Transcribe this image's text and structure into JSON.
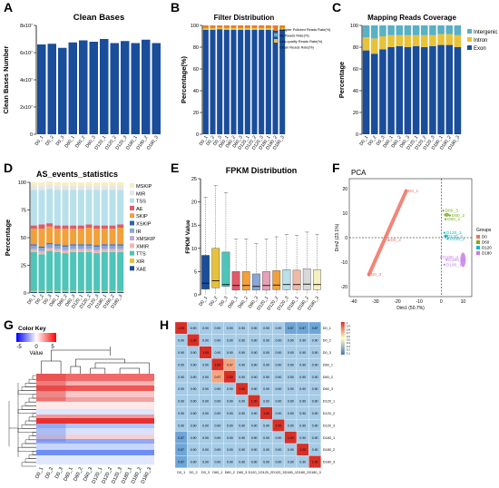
{
  "figure": {
    "letters": [
      "A",
      "B",
      "C",
      "D",
      "E",
      "F",
      "G",
      "H"
    ]
  },
  "sample_names": [
    "D0_1",
    "D0_2",
    "D0_3",
    "D60_1",
    "D60_2",
    "D60_3",
    "D120_1",
    "D120_2",
    "D120_3",
    "D180_1",
    "D180_2",
    "D180_3"
  ],
  "chart_data": [
    {
      "panel": "A",
      "type": "bar",
      "title": "Clean Bases",
      "xlabel": "",
      "ylabel": "Clean Bases Number",
      "ylim": [
        0,
        80000000
      ],
      "yticks": [
        "0",
        "2x10⁷",
        "4x10⁷",
        "6x10⁷",
        "8x10⁷"
      ],
      "categories": [
        "D0_1",
        "D0_2",
        "D0_3",
        "D60_1",
        "D60_2",
        "D60_3",
        "D120_1",
        "D120_2",
        "D120_3",
        "D180_1",
        "D180_2",
        "D180_3"
      ],
      "values": [
        66000000,
        66500000,
        63500000,
        67500000,
        69000000,
        68000000,
        70000000,
        67000000,
        68500000,
        67000000,
        69500000,
        67000000
      ],
      "color": "#1a4d9a"
    },
    {
      "panel": "B",
      "type": "bar",
      "title": "Filter Distribution",
      "xlabel": "",
      "ylabel": "Percentage(%)",
      "ylim": [
        0,
        100
      ],
      "yticks": [
        "0",
        "20",
        "40",
        "60",
        "80",
        "100"
      ],
      "categories": [
        "D0_1",
        "D0_2",
        "D0_3",
        "D60_1",
        "D60_2",
        "D60_3",
        "D120_1",
        "D120_2",
        "D120_3",
        "D180_1",
        "D180_2",
        "D180_3"
      ],
      "legend_placement": "right",
      "series": [
        {
          "name": "Clean Reads Rate(%)",
          "color": "#1a4d9a",
          "values": [
            96,
            96,
            96.5,
            96,
            96,
            96,
            96,
            96,
            96,
            96,
            96,
            96
          ]
        },
        {
          "name": "Low-quality Reads Rate(%)",
          "color": "#e8c23a",
          "values": [
            1.5,
            1.5,
            1.3,
            1.5,
            1.5,
            1.5,
            1.5,
            1.5,
            1.5,
            1.5,
            1.5,
            1.5
          ]
        },
        {
          "name": "No Reads Rate(%)",
          "color": "#5ab0c4",
          "values": [
            0.5,
            0.5,
            0.5,
            0.5,
            0.5,
            0.5,
            0.5,
            0.5,
            0.5,
            0.5,
            0.5,
            0.5
          ]
        },
        {
          "name": "Adapter Polluted Reads Rate(%)",
          "color": "#e87b2a",
          "values": [
            2,
            2,
            1.7,
            2,
            2,
            2,
            2,
            2,
            2,
            2,
            2,
            2
          ]
        }
      ]
    },
    {
      "panel": "C",
      "type": "bar",
      "title": "Mapping Reads Coverage",
      "xlabel": "",
      "ylabel": "Percentage",
      "ylim": [
        0,
        100
      ],
      "yticks": [
        "0",
        "20",
        "40",
        "60",
        "80",
        "100"
      ],
      "categories": [
        "D0_1",
        "D0_2",
        "D0_3",
        "D60_1",
        "D60_2",
        "D60_3",
        "D120_1",
        "D120_2",
        "D120_3",
        "D180_1",
        "D180_2",
        "D180_3"
      ],
      "legend_placement": "right",
      "series": [
        {
          "name": "Exon",
          "color": "#1a4d9a",
          "values": [
            77,
            74,
            78,
            80,
            81,
            80,
            81,
            80,
            81,
            82,
            82,
            80
          ]
        },
        {
          "name": "Intron",
          "color": "#e8c23a",
          "values": [
            12,
            14,
            12,
            11,
            10,
            11,
            10,
            11,
            10,
            10,
            10,
            11
          ]
        },
        {
          "name": "Intergenic",
          "color": "#5ab0c4",
          "values": [
            11,
            12,
            10,
            9,
            9,
            9,
            9,
            9,
            9,
            8,
            8,
            9
          ]
        }
      ]
    },
    {
      "panel": "D",
      "type": "bar",
      "title": "AS_events_statistics",
      "xlabel": "",
      "ylabel": "Percentage",
      "ylim": [
        0,
        100
      ],
      "yticks": [
        "0",
        "25",
        "50",
        "75",
        "100"
      ],
      "categories": [
        "D0_1",
        "D0_2",
        "D0_3",
        "D60_1",
        "D60_2",
        "D60_3",
        "D120_1",
        "D120_2",
        "D120_3",
        "D180_1",
        "D180_2",
        "D180_3"
      ],
      "legend_placement": "right",
      "series": [
        {
          "name": "XAE",
          "color": "#1a4d9a",
          "values": [
            1,
            1,
            1,
            1,
            1,
            1,
            1,
            1,
            1,
            1,
            1,
            1
          ]
        },
        {
          "name": "XIR",
          "color": "#e8c23a",
          "values": [
            1,
            1,
            1,
            1,
            1,
            1,
            1,
            1,
            1,
            1,
            1,
            1
          ]
        },
        {
          "name": "TTS",
          "color": "#4fc4b8",
          "values": [
            35,
            33,
            36,
            35,
            34,
            35,
            35,
            35,
            34,
            35,
            35,
            35
          ]
        },
        {
          "name": "XMIR",
          "color": "#f0b9a6",
          "values": [
            2,
            2,
            2,
            2,
            2,
            2,
            2,
            2,
            2,
            2,
            2,
            2
          ]
        },
        {
          "name": "XMSKIP",
          "color": "#c0a8d8",
          "values": [
            1,
            1,
            1,
            1,
            1,
            1,
            1,
            1,
            1,
            1,
            1,
            1
          ]
        },
        {
          "name": "IR",
          "color": "#8aa7d6",
          "values": [
            3,
            3,
            3,
            3,
            3,
            3,
            3,
            3,
            3,
            3,
            3,
            3
          ]
        },
        {
          "name": "XSKIP",
          "color": "#2f63b0",
          "values": [
            1,
            1,
            1,
            1,
            1,
            1,
            1,
            1,
            1,
            1,
            1,
            1
          ]
        },
        {
          "name": "SKIP",
          "color": "#f2a03a",
          "values": [
            14,
            16,
            15,
            14,
            15,
            14,
            14,
            15,
            15,
            14,
            14,
            15
          ]
        },
        {
          "name": "AE",
          "color": "#e05a6a",
          "values": [
            3,
            4,
            3,
            3,
            3,
            3,
            3,
            3,
            3,
            3,
            3,
            3
          ]
        },
        {
          "name": "TSS",
          "color": "#b8e0ea",
          "values": [
            32,
            31,
            31,
            32,
            32,
            32,
            32,
            31,
            32,
            32,
            32,
            31
          ]
        },
        {
          "name": "MIR",
          "color": "#e6e6e6",
          "values": [
            4,
            4,
            4,
            4,
            4,
            4,
            4,
            4,
            4,
            4,
            4,
            4
          ]
        },
        {
          "name": "MSKIP",
          "color": "#f6efc0",
          "values": [
            3,
            3,
            3,
            3,
            3,
            3,
            3,
            3,
            3,
            3,
            3,
            3
          ]
        }
      ]
    },
    {
      "panel": "E",
      "type": "box",
      "title": "FPKM Distribution",
      "xlabel": "",
      "ylabel": "FPKM Value",
      "ylim": [
        0,
        25
      ],
      "yticks": [
        "0",
        "5",
        "10",
        "15",
        "20",
        "25"
      ],
      "categories": [
        "D0_1",
        "D0_2",
        "D0_3",
        "D60_1",
        "D60_2",
        "D60_3",
        "D120_1",
        "D120_2",
        "D120_3",
        "D180_1",
        "D180_2",
        "D180_3"
      ],
      "colors": [
        "#1a4d9a",
        "#e8c23a",
        "#4fc4b8",
        "#e05a6a",
        "#f2a03a",
        "#8aa7d6",
        "#e6a0b8",
        "#f2a03a",
        "#b8e0ea",
        "#f0b9a6",
        "#d8d8d8",
        "#f6efc0"
      ],
      "boxes": [
        {
          "min": 0.1,
          "q1": 1.2,
          "median": 2.5,
          "q3": 8.5,
          "max": 21
        },
        {
          "min": 0.1,
          "q1": 1.5,
          "median": 3,
          "q3": 10,
          "max": 23.5
        },
        {
          "min": 0.1,
          "q1": 1.8,
          "median": 2.2,
          "q3": 9.2,
          "max": 22
        },
        {
          "min": 0.1,
          "q1": 1.0,
          "median": 2.0,
          "q3": 5,
          "max": 12
        },
        {
          "min": 0.1,
          "q1": 1.0,
          "median": 2.0,
          "q3": 5,
          "max": 12
        },
        {
          "min": 0.1,
          "q1": 1.0,
          "median": 1.8,
          "q3": 4.5,
          "max": 11
        },
        {
          "min": 0.1,
          "q1": 1.0,
          "median": 2.0,
          "q3": 5,
          "max": 12
        },
        {
          "min": 0.1,
          "q1": 1.1,
          "median": 2.1,
          "q3": 5.2,
          "max": 12.5
        },
        {
          "min": 0.1,
          "q1": 1.1,
          "median": 2.2,
          "q3": 5.4,
          "max": 13
        },
        {
          "min": 0.1,
          "q1": 1.1,
          "median": 2.2,
          "q3": 5.3,
          "max": 12.8
        },
        {
          "min": 0.1,
          "q1": 1.1,
          "median": 2.3,
          "q3": 5.6,
          "max": 13.5
        },
        {
          "min": 0.1,
          "q1": 1.1,
          "median": 2.2,
          "q3": 5.4,
          "max": 13
        }
      ]
    },
    {
      "panel": "F",
      "type": "scatter",
      "title": "PCA",
      "xlabel": "Dim1 (50.7%)",
      "ylabel": "Dim2 (23.1%)",
      "xlim": [
        -42,
        14
      ],
      "ylim": [
        -24,
        24
      ],
      "xticks": [
        "-40",
        "-30",
        "-20",
        "-10",
        "0",
        "10"
      ],
      "yticks": [
        "-20",
        "-10",
        "0",
        "10",
        "20"
      ],
      "legend_title": "Groups",
      "legend_placement": "right",
      "groups": [
        {
          "name": "D0",
          "color": "#f07060",
          "points": [
            {
              "label": "D0_1",
              "x": -16,
              "y": 19
            },
            {
              "label": "D0_2",
              "x": -24,
              "y": -1
            },
            {
              "label": "D0_3",
              "x": -33,
              "y": -15
            }
          ]
        },
        {
          "name": "D60",
          "color": "#7aaa1c",
          "points": [
            {
              "label": "D60_3",
              "x": 1,
              "y": 11
            },
            {
              "label": "D60_2",
              "x": 4,
              "y": 9
            },
            {
              "label": "D60_1",
              "x": 2,
              "y": 7.5
            }
          ]
        },
        {
          "name": "D120",
          "color": "#18b6c0",
          "points": [
            {
              "label": "D120_1",
              "x": 1.5,
              "y": 2
            },
            {
              "label": "D120_3",
              "x": 2,
              "y": 0.5
            },
            {
              "label": "D120_2",
              "x": 3,
              "y": -0.5
            }
          ]
        },
        {
          "name": "D180",
          "color": "#c77ce8",
          "points": [
            {
              "label": "D180_3",
              "x": 0,
              "y": -8
            },
            {
              "label": "D180_2",
              "x": 2.5,
              "y": -9
            },
            {
              "label": "D180_1",
              "x": 1.5,
              "y": -11
            }
          ]
        }
      ]
    },
    {
      "panel": "G",
      "type": "heatmap",
      "title": "",
      "xlabel": "",
      "ylabel": "",
      "legend_title": "Color Key",
      "legend_sub": "Value",
      "legend_ticks": [
        "-5",
        "0",
        "5"
      ],
      "columns": [
        "D0_1",
        "D0_2",
        "D0_3",
        "D60_1",
        "D60_2",
        "D60_3",
        "D120_1",
        "D120_2",
        "D120_3",
        "D180_1",
        "D180_2",
        "D180_3"
      ]
    },
    {
      "panel": "H",
      "type": "heatmap",
      "title": "",
      "xlabel": "",
      "ylabel": "",
      "legend_ticks": [
        "1",
        "0.9",
        "0.8",
        "0.7",
        "0.6",
        "0.5",
        "0.4",
        "0.3",
        "0.2",
        "0.1"
      ],
      "labels": [
        "D0_1",
        "D0_2",
        "D0_3",
        "D60_1",
        "D60_2",
        "D60_3",
        "D120_1",
        "D120_2",
        "D120_3",
        "D180_1",
        "D180_2",
        "D180_3"
      ],
      "matrix": [
        [
          1.0,
          0.9,
          0.9,
          0.9,
          0.9,
          0.9,
          0.9,
          0.9,
          0.9,
          0.87,
          0.87,
          0.87
        ],
        [
          0.9,
          1.0,
          0.9,
          0.9,
          0.9,
          0.9,
          0.9,
          0.9,
          0.9,
          0.9,
          0.9,
          0.9
        ],
        [
          0.9,
          0.9,
          1.0,
          0.9,
          0.9,
          0.9,
          0.9,
          0.9,
          0.9,
          0.9,
          0.9,
          0.9
        ],
        [
          0.9,
          0.9,
          0.9,
          1.0,
          0.97,
          0.9,
          0.9,
          0.9,
          0.9,
          0.9,
          0.9,
          0.9
        ],
        [
          0.9,
          0.9,
          0.9,
          0.97,
          1.0,
          0.9,
          0.9,
          0.9,
          0.9,
          0.9,
          0.9,
          0.9
        ],
        [
          0.9,
          0.9,
          0.9,
          0.9,
          0.9,
          1.0,
          0.9,
          0.9,
          0.9,
          0.9,
          0.9,
          0.9
        ],
        [
          0.9,
          0.9,
          0.9,
          0.9,
          0.9,
          0.9,
          1.0,
          0.9,
          0.9,
          0.9,
          0.9,
          0.9
        ],
        [
          0.9,
          0.9,
          0.9,
          0.9,
          0.9,
          0.9,
          0.9,
          1.0,
          0.9,
          0.9,
          0.9,
          0.9
        ],
        [
          0.9,
          0.9,
          0.9,
          0.9,
          0.9,
          0.9,
          0.9,
          0.9,
          1.0,
          0.9,
          0.9,
          0.9
        ],
        [
          0.87,
          0.9,
          0.9,
          0.9,
          0.9,
          0.9,
          0.9,
          0.9,
          0.9,
          1.0,
          0.9,
          0.9
        ],
        [
          0.87,
          0.9,
          0.9,
          0.9,
          0.9,
          0.9,
          0.9,
          0.9,
          0.9,
          0.9,
          1.0,
          0.9
        ],
        [
          0.87,
          0.9,
          0.9,
          0.9,
          0.9,
          0.9,
          0.9,
          0.9,
          0.9,
          0.9,
          0.9,
          1.0
        ]
      ]
    }
  ]
}
